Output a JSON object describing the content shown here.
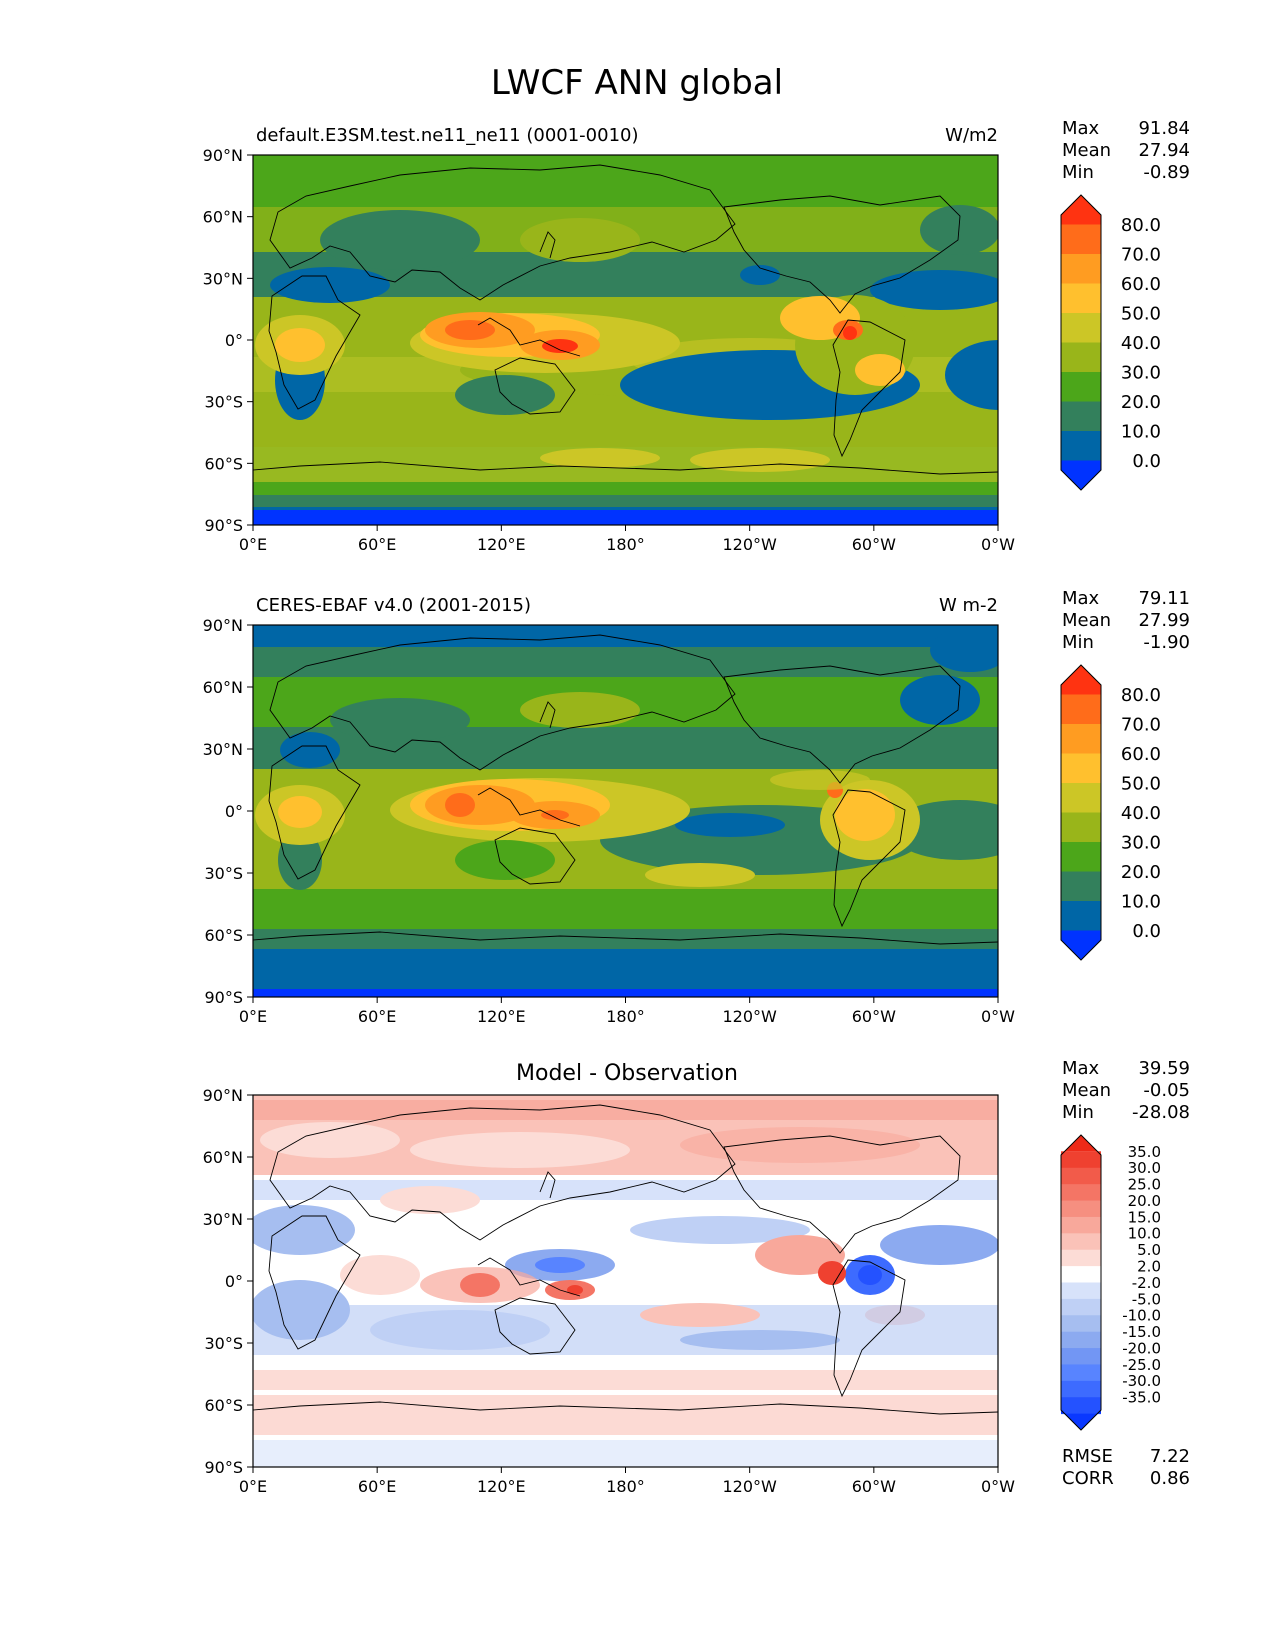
{
  "page_title": "LWCF ANN global",
  "colors": {
    "abs_levels": [
      "#0033ff",
      "#0066a6",
      "#33805c",
      "#4ca61a",
      "#99b51a",
      "#ccc626",
      "#ffc02e",
      "#ff9c21",
      "#ff6c1a",
      "#ff3311"
    ],
    "diff_levels": [
      "#0a38ff",
      "#2452ff",
      "#3d6bff",
      "#5884ff",
      "#7296f4",
      "#8caaf0",
      "#a6bef0",
      "#bfd0f5",
      "#d7e2fa",
      "#ffffff",
      "#fcdcd6",
      "#fac2b8",
      "#f8a89b",
      "#f68f80",
      "#f47565",
      "#f25b4a",
      "#ef4130",
      "#ee2a18"
    ]
  },
  "panels": [
    {
      "title_left": "default.E3SM.test.ne11_ne11 (0001-0010)",
      "title_center": "",
      "units": "W/m2",
      "stats": {
        "max_label": "Max",
        "max": "91.84",
        "mean_label": "Mean",
        "mean": "27.94",
        "min_label": "Min",
        "min": "-0.89"
      },
      "colorbar_labels": [
        "80.0",
        "70.0",
        "60.0",
        "50.0",
        "40.0",
        "30.0",
        "20.0",
        "10.0",
        "0.0"
      ]
    },
    {
      "title_left": "CERES-EBAF v4.0 (2001-2015)",
      "title_center": "",
      "units": "W m-2",
      "stats": {
        "max_label": "Max",
        "max": "79.11",
        "mean_label": "Mean",
        "mean": "27.99",
        "min_label": "Min",
        "min": "-1.90"
      },
      "colorbar_labels": [
        "80.0",
        "70.0",
        "60.0",
        "50.0",
        "40.0",
        "30.0",
        "20.0",
        "10.0",
        "0.0"
      ]
    },
    {
      "title_left": "",
      "title_center": "Model - Observation",
      "units": "",
      "stats": {
        "max_label": "Max",
        "max": "39.59",
        "mean_label": "Mean",
        "mean": "-0.05",
        "min_label": "Min",
        "min": "-28.08"
      },
      "colorbar_labels": [
        "35.0",
        "30.0",
        "25.0",
        "20.0",
        "15.0",
        "10.0",
        "5.0",
        "2.0",
        "-2.0",
        "-5.0",
        "-10.0",
        "-15.0",
        "-20.0",
        "-25.0",
        "-30.0",
        "-35.0"
      ],
      "rmse_label": "RMSE",
      "rmse": "7.22",
      "corr_label": "CORR",
      "corr": "0.86"
    }
  ],
  "chart_data": [
    {
      "type": "heatmap",
      "title": "default.E3SM.test.ne11_ne11 (0001-0010)",
      "units": "W/m2",
      "xlabel": "",
      "ylabel": "",
      "xlim": [
        0,
        360
      ],
      "ylim": [
        -90,
        90
      ],
      "x_ticks": [
        "0°E",
        "60°E",
        "120°E",
        "180°",
        "120°W",
        "60°W",
        "0°W"
      ],
      "y_ticks": [
        "90°N",
        "60°N",
        "30°N",
        "0°",
        "30°S",
        "60°S",
        "90°S"
      ],
      "contour_levels": [
        0,
        10,
        20,
        30,
        40,
        50,
        60,
        70,
        80
      ],
      "stats": {
        "max": 91.84,
        "mean": 27.94,
        "min": -0.89
      }
    },
    {
      "type": "heatmap",
      "title": "CERES-EBAF v4.0 (2001-2015)",
      "units": "W m-2",
      "xlabel": "",
      "ylabel": "",
      "xlim": [
        0,
        360
      ],
      "ylim": [
        -90,
        90
      ],
      "x_ticks": [
        "0°E",
        "60°E",
        "120°E",
        "180°",
        "120°W",
        "60°W",
        "0°W"
      ],
      "y_ticks": [
        "90°N",
        "60°N",
        "30°N",
        "0°",
        "30°S",
        "60°S",
        "90°S"
      ],
      "contour_levels": [
        0,
        10,
        20,
        30,
        40,
        50,
        60,
        70,
        80
      ],
      "stats": {
        "max": 79.11,
        "mean": 27.99,
        "min": -1.9
      }
    },
    {
      "type": "heatmap",
      "title": "Model - Observation",
      "units": "",
      "xlabel": "",
      "ylabel": "",
      "xlim": [
        0,
        360
      ],
      "ylim": [
        -90,
        90
      ],
      "x_ticks": [
        "0°E",
        "60°E",
        "120°E",
        "180°",
        "120°W",
        "60°W",
        "0°W"
      ],
      "y_ticks": [
        "90°N",
        "60°N",
        "30°N",
        "0°",
        "30°S",
        "60°S",
        "90°S"
      ],
      "contour_levels": [
        -35,
        -30,
        -25,
        -20,
        -15,
        -10,
        -5,
        -2,
        2,
        5,
        10,
        15,
        20,
        25,
        30,
        35
      ],
      "stats": {
        "max": 39.59,
        "mean": -0.05,
        "min": -28.08,
        "rmse": 7.22,
        "corr": 0.86
      }
    }
  ]
}
